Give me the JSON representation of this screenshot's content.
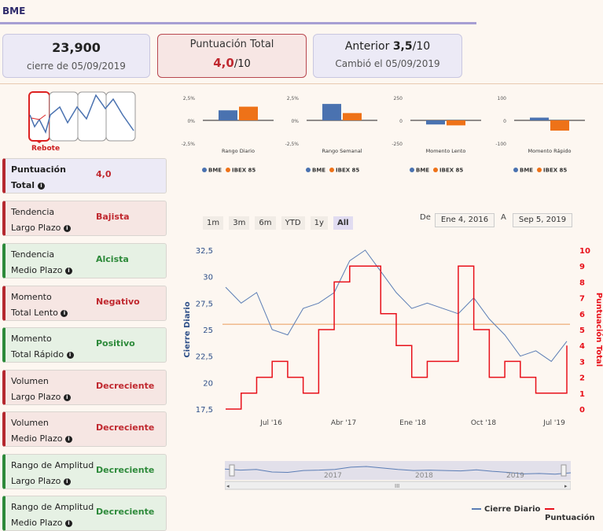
{
  "header": {
    "ticker": "BME"
  },
  "cards": {
    "close": {
      "value": "23,900",
      "caption": "cierre de 05/09/2019"
    },
    "score": {
      "title": "Puntuación Total",
      "value": "4,0",
      "suffix": "/10"
    },
    "previous": {
      "title": "Anterior",
      "value": "3,5",
      "suffix": "/10",
      "caption": "Cambió el 05/09/2019"
    }
  },
  "thumbnail": {
    "label": "Rebote"
  },
  "indicators": [
    {
      "line1": "Puntuación",
      "line2": "Total",
      "value": "4,0",
      "status": "purple"
    },
    {
      "line1": "Tendencia",
      "line2": "Largo Plazo",
      "value": "Bajista",
      "status": "red"
    },
    {
      "line1": "Tendencia",
      "line2": "Medio Plazo",
      "value": "Alcista",
      "status": "green"
    },
    {
      "line1": "Momento",
      "line2": "Total Lento",
      "value": "Negativo",
      "status": "red"
    },
    {
      "line1": "Momento",
      "line2": "Total Rápido",
      "value": "Positivo",
      "status": "green"
    },
    {
      "line1": "Volumen",
      "line2": "Largo Plazo",
      "value": "Decreciente",
      "status": "red"
    },
    {
      "line1": "Volumen",
      "line2": "Medio Plazo",
      "value": "Decreciente",
      "status": "red"
    },
    {
      "line1": "Rango de Amplitud",
      "line2": "Largo Plazo",
      "value": "Decreciente",
      "status": "green"
    },
    {
      "line1": "Rango de Amplitud",
      "line2": "Medio Plazo",
      "value": "Decreciente",
      "status": "green"
    }
  ],
  "chart_data": [
    {
      "type": "bar",
      "title": "Rango Diario",
      "categories": [
        "BME",
        "IBEX 85"
      ],
      "values": [
        1.1,
        1.5
      ],
      "yticks": [
        "2,5%",
        "0%",
        "-2,5%"
      ],
      "ylim": [
        -2.5,
        2.5
      ],
      "colors": [
        "#4a72b0",
        "#ee7218"
      ]
    },
    {
      "type": "bar",
      "title": "Rango Semanal",
      "categories": [
        "BME",
        "IBEX 85"
      ],
      "values": [
        1.8,
        0.8
      ],
      "yticks": [
        "2,5%",
        "0%",
        "-2,5%"
      ],
      "ylim": [
        -2.5,
        2.5
      ],
      "colors": [
        "#4a72b0",
        "#ee7218"
      ]
    },
    {
      "type": "bar",
      "title": "Momento Lento",
      "categories": [
        "BME",
        "IBEX 85"
      ],
      "values": [
        -45,
        -55
      ],
      "yticks": [
        "250",
        "0",
        "-250"
      ],
      "ylim": [
        -250,
        250
      ],
      "colors": [
        "#4a72b0",
        "#ee7218"
      ]
    },
    {
      "type": "bar",
      "title": "Momento Rápido",
      "categories": [
        "BME",
        "IBEX 85"
      ],
      "values": [
        12,
        -45
      ],
      "yticks": [
        "100",
        "0",
        "-100"
      ],
      "ylim": [
        -100,
        100
      ],
      "colors": [
        "#4a72b0",
        "#ee7218"
      ]
    },
    {
      "type": "line",
      "ylabel_left": "Cierre Diario",
      "ylabel_right": "Puntuación Total",
      "yticks_left": [
        "32,5",
        "30",
        "27,5",
        "25",
        "22,5",
        "20",
        "17,5"
      ],
      "yticks_right": [
        "10",
        "9",
        "8",
        "7",
        "6",
        "5",
        "4",
        "3",
        "2",
        "1",
        "0"
      ],
      "xticks": [
        "Jul '16",
        "Abr '17",
        "Ene '18",
        "Oct '18",
        "Jul '19"
      ],
      "ylim_left": [
        17.5,
        32.5
      ],
      "ylim_right": [
        0,
        10
      ],
      "reference_line": 25.5,
      "series": [
        {
          "name": "Cierre Diario",
          "color": "#5b7db5",
          "x": [
            "2016-01",
            "2016-03",
            "2016-05",
            "2016-07",
            "2016-09",
            "2016-11",
            "2017-01",
            "2017-03",
            "2017-05",
            "2017-07",
            "2017-09",
            "2017-11",
            "2018-01",
            "2018-03",
            "2018-05",
            "2018-07",
            "2018-09",
            "2018-11",
            "2019-01",
            "2019-03",
            "2019-05",
            "2019-07",
            "2019-09"
          ],
          "values": [
            29,
            27.5,
            28.5,
            25,
            24.5,
            27,
            27.5,
            28.5,
            31.5,
            32.5,
            30.5,
            28.5,
            27,
            27.5,
            27,
            26.5,
            28,
            26,
            24.5,
            22.5,
            23,
            22,
            23.9
          ]
        },
        {
          "name": "Puntuación",
          "color": "#e8101a",
          "x": [
            "2016-01",
            "2016-03",
            "2016-05",
            "2016-07",
            "2016-09",
            "2016-11",
            "2017-01",
            "2017-03",
            "2017-05",
            "2017-07",
            "2017-09",
            "2017-11",
            "2018-01",
            "2018-03",
            "2018-05",
            "2018-07",
            "2018-09",
            "2018-11",
            "2019-01",
            "2019-03",
            "2019-05",
            "2019-07",
            "2019-09"
          ],
          "values": [
            0,
            1,
            2,
            3,
            2,
            1,
            5,
            8,
            9,
            9,
            6,
            4,
            2,
            3,
            3,
            9,
            5,
            2,
            3,
            2,
            1,
            1,
            4
          ]
        }
      ]
    }
  ],
  "mini_legend": {
    "a": "BME",
    "b": "IBEX 85"
  },
  "controls": {
    "zoom": [
      "1m",
      "3m",
      "6m",
      "YTD",
      "1y",
      "All"
    ],
    "from_label": "De",
    "from_value": "Ene 4, 2016",
    "to_label": "A",
    "to_value": "Sep 5, 2019"
  },
  "navigator": {
    "years": [
      "2017",
      "2018",
      "2019"
    ]
  },
  "legend": {
    "close": "Cierre Diario",
    "score": "Puntuación"
  }
}
